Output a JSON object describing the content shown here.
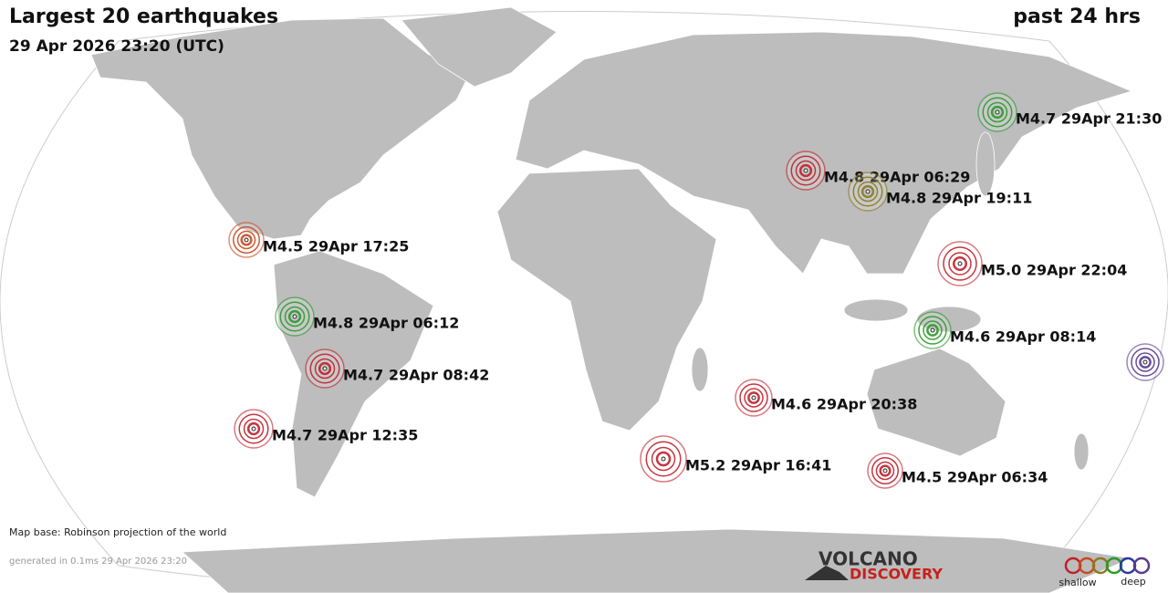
{
  "header": {
    "title": "Largest 20 earthquakes",
    "subtitle": "29 Apr 2026 23:20 (UTC)",
    "period": "past 24 hrs"
  },
  "quakes": [
    {
      "label": "M4.7 29Apr 21:30",
      "color": "#2a9a2a"
    },
    {
      "label": "M4.8 29Apr 06:29",
      "color": "#c0202a"
    },
    {
      "label": "M4.8 29Apr 19:11",
      "color": "#8a7a20"
    },
    {
      "label": "M4.5 29Apr 17:25",
      "color": "#c84a20"
    },
    {
      "label": "M5.0 29Apr 22:04",
      "color": "#c0202a"
    },
    {
      "label": "M4.8 29Apr 06:12",
      "color": "#2a9a2a"
    },
    {
      "label": "M4.6 29Apr 08:14",
      "color": "#2a9a2a"
    },
    {
      "label": "M4.7 29Apr 08:42",
      "color": "#c0202a"
    },
    {
      "label": null,
      "color": "#5a3a90"
    },
    {
      "label": "M4.6 29Apr 20:38",
      "color": "#c0202a"
    },
    {
      "label": "M4.7 29Apr 12:35",
      "color": "#c0202a"
    },
    {
      "label": "M5.2 29Apr 16:41",
      "color": "#c0202a"
    },
    {
      "label": "M4.5 29Apr 06:34",
      "color": "#c0202a"
    }
  ],
  "footer": {
    "map_base": "Map base: Robinson projection of the world",
    "generated": "generated in 0.1ms 29 Apr 2026 23:20"
  },
  "logo": {
    "line1": "VOLCANO",
    "line2": "DISCOVERY"
  },
  "legend": {
    "shallow": "shallow",
    "deep": "deep"
  }
}
